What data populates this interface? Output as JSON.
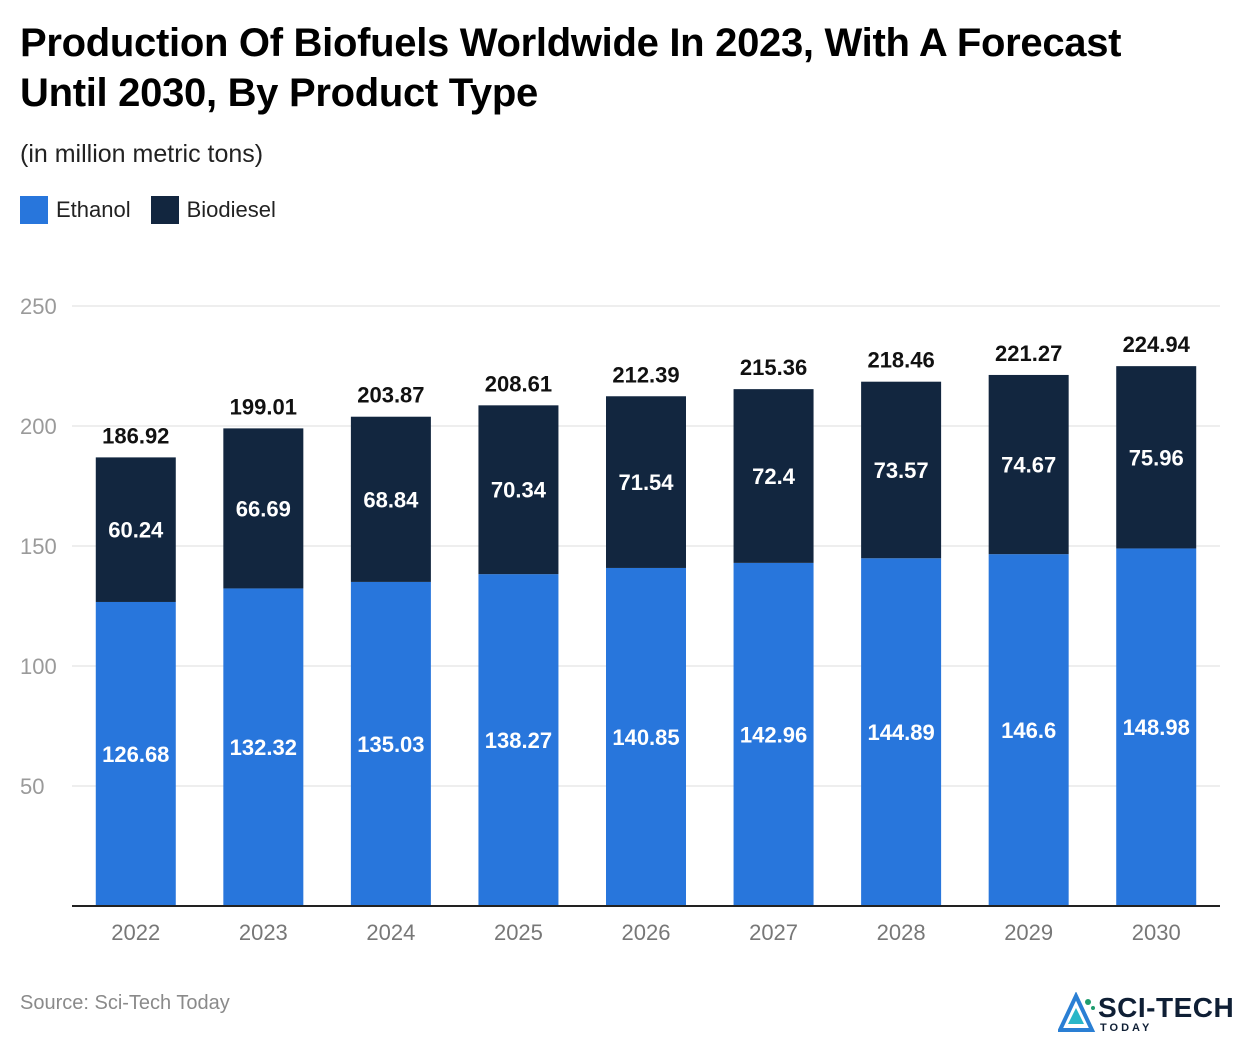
{
  "header": {
    "title": "Production Of Biofuels Worldwide In 2023, With A Forecast Until 2030, By Product Type",
    "subtitle": "(in million metric tons)"
  },
  "legend": {
    "items": [
      {
        "label": "Ethanol",
        "color": "#2876dc"
      },
      {
        "label": "Biodiesel",
        "color": "#12263f"
      }
    ]
  },
  "footer": {
    "source": "Source: Sci-Tech Today",
    "logo_main": "SCI-TECH",
    "logo_sub": "TODAY"
  },
  "chart_data": {
    "type": "bar",
    "stacked": true,
    "categories": [
      "2022",
      "2023",
      "2024",
      "2025",
      "2026",
      "2027",
      "2028",
      "2029",
      "2030"
    ],
    "series": [
      {
        "name": "Ethanol",
        "color": "#2876dc",
        "values": [
          126.68,
          132.32,
          135.03,
          138.27,
          140.85,
          142.96,
          144.89,
          146.6,
          148.98
        ]
      },
      {
        "name": "Biodiesel",
        "color": "#12263f",
        "values": [
          60.24,
          66.69,
          68.84,
          70.34,
          71.54,
          72.4,
          73.57,
          74.67,
          75.96
        ]
      }
    ],
    "totals": [
      "186.92",
      "199.01",
      "203.87",
      "208.61",
      "212.39",
      "215.36",
      "218.46",
      "221.27",
      "224.94"
    ],
    "ylim": [
      0,
      250
    ],
    "yticks": [
      50,
      100,
      150,
      200,
      250
    ],
    "grid": true,
    "legend_position": "top-left",
    "xlabel": "",
    "ylabel": ""
  }
}
